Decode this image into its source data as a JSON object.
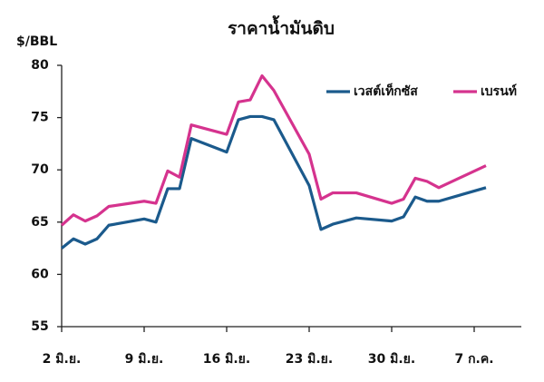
{
  "chart_data": {
    "type": "line",
    "title": "ราคาน้ำมันดิบ",
    "y_label": "$/BBL",
    "x": [
      0,
      1,
      2,
      3,
      4,
      7,
      8,
      9,
      10,
      11,
      14,
      15,
      16,
      17,
      18,
      21,
      22,
      23,
      25,
      28,
      29,
      30,
      31,
      32,
      36
    ],
    "series": [
      {
        "name": "เวสต์เท็กซัส",
        "color": "#1b5a8c",
        "values": [
          62.5,
          63.4,
          62.9,
          63.4,
          64.7,
          65.3,
          65.0,
          68.2,
          68.2,
          73.0,
          71.7,
          74.8,
          75.1,
          75.1,
          74.8,
          68.5,
          64.3,
          64.8,
          65.4,
          65.1,
          65.5,
          67.4,
          67.0,
          67.0,
          68.3
        ]
      },
      {
        "name": "เบรนท์",
        "color": "#d5338e",
        "values": [
          64.7,
          65.7,
          65.1,
          65.6,
          66.5,
          67.0,
          66.8,
          69.9,
          69.3,
          74.3,
          73.4,
          76.5,
          76.7,
          79.0,
          77.6,
          71.5,
          67.2,
          67.8,
          67.8,
          66.8,
          67.2,
          69.2,
          68.9,
          68.3,
          70.4
        ]
      }
    ],
    "xlim": [
      0,
      39
    ],
    "xticks": [
      {
        "value": 0,
        "label": "2 มิ.ย."
      },
      {
        "value": 7,
        "label": "9 มิ.ย."
      },
      {
        "value": 14,
        "label": "16 มิ.ย."
      },
      {
        "value": 21,
        "label": "23 มิ.ย."
      },
      {
        "value": 28,
        "label": "30 มิ.ย."
      },
      {
        "value": 35,
        "label": "7 ก.ค."
      }
    ],
    "ylim": [
      55,
      80
    ],
    "yticks": [
      55,
      60,
      65,
      70,
      75,
      80
    ],
    "grid": false,
    "legend": "top-right"
  }
}
